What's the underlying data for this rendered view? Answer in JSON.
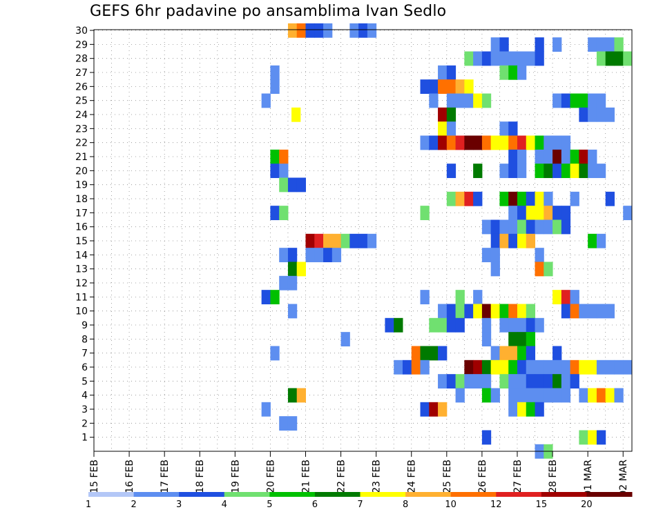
{
  "chart_data": {
    "type": "heatmap",
    "title": "GEFS 6hr padavine po ansamblima Ivan Sedlo",
    "xlabel": "",
    "ylabel": "",
    "x_tick_labels": [
      "15 FEB",
      "16 FEB",
      "17 FEB",
      "18 FEB",
      "19 FEB",
      "20 FEB",
      "21 FEB",
      "22 FEB",
      "23 FEB",
      "24 FEB",
      "25 FEB",
      "26 FEB",
      "27 FEB",
      "28 FEB",
      "01 MAR",
      "02 MAR"
    ],
    "y_tick_labels": [
      "1",
      "2",
      "3",
      "4",
      "5",
      "6",
      "7",
      "8",
      "9",
      "10",
      "11",
      "12",
      "13",
      "14",
      "15",
      "16",
      "17",
      "18",
      "19",
      "20",
      "21",
      "22",
      "23",
      "24",
      "25",
      "26",
      "27",
      "28",
      "29",
      "30"
    ],
    "y_range": [
      0,
      30
    ],
    "x_range_days": [
      0,
      15.25
    ],
    "grid": true,
    "legend_placement": "bottom",
    "colorbar": {
      "labels": [
        "1",
        "2",
        "3",
        "4",
        "5",
        "6",
        "7",
        "8",
        "10",
        "12",
        "15",
        "20"
      ],
      "colors": [
        "#b3c7f7",
        "#5d8ef0",
        "#1f4fe0",
        "#70e070",
        "#00c000",
        "#007a00",
        "#ffff00",
        "#ffb030",
        "#ff7000",
        "#e02020",
        "#a00000",
        "#6a0000"
      ]
    },
    "series": [
      {
        "member": 30,
        "x": [
          5.5,
          5.75,
          6.0,
          6.25,
          6.5,
          7.25,
          7.5,
          7.75
        ],
        "v": [
          8,
          10,
          3,
          3,
          2,
          2,
          3,
          2
        ]
      },
      {
        "member": 29,
        "x": [
          11.25,
          11.5,
          12.5,
          13.0,
          14.0,
          14.25,
          14.5,
          14.75
        ],
        "v": [
          2,
          3,
          3,
          2,
          2,
          2,
          2,
          4
        ]
      },
      {
        "member": 28,
        "x": [
          10.5,
          10.75,
          11.0,
          11.25,
          11.5,
          11.75,
          12.0,
          12.25,
          12.5,
          14.25,
          14.5,
          14.75,
          15.0
        ],
        "v": [
          4,
          2,
          3,
          2,
          2,
          2,
          2,
          2,
          3,
          4,
          6,
          6,
          4
        ]
      },
      {
        "member": 27,
        "x": [
          5.0,
          9.75,
          10.0,
          11.5,
          11.75,
          12.0
        ],
        "v": [
          2,
          2,
          3,
          4,
          5,
          2
        ]
      },
      {
        "member": 26,
        "x": [
          5.0,
          9.25,
          9.5,
          9.75,
          10.0,
          10.25,
          10.5
        ],
        "v": [
          2,
          3,
          3,
          10,
          10,
          8,
          7
        ]
      },
      {
        "member": 25,
        "x": [
          4.75,
          9.5,
          10.0,
          10.25,
          10.5,
          10.75,
          11.0,
          13.0,
          13.25,
          13.5,
          13.75,
          14.0,
          14.25
        ],
        "v": [
          2,
          2,
          2,
          2,
          2,
          7,
          4,
          2,
          3,
          5,
          5,
          2,
          2
        ]
      },
      {
        "member": 24,
        "x": [
          5.6,
          9.75,
          10.0,
          13.75,
          14.0,
          14.25,
          14.5
        ],
        "v": [
          7,
          15,
          6,
          3,
          2,
          2,
          2
        ]
      },
      {
        "member": 23,
        "x": [
          9.75,
          10.0,
          11.5,
          11.75
        ],
        "v": [
          7,
          2,
          2,
          3
        ]
      },
      {
        "member": 22,
        "x": [
          9.25,
          9.5,
          9.75,
          10.0,
          10.25,
          10.5,
          10.75,
          11.0,
          11.25,
          11.5,
          11.75,
          12.0,
          12.25,
          12.5,
          12.75,
          13.0,
          13.25
        ],
        "v": [
          2,
          3,
          15,
          10,
          12,
          20,
          20,
          10,
          7,
          7,
          10,
          12,
          7,
          5,
          2,
          2,
          2
        ]
      },
      {
        "member": 21,
        "x": [
          5.0,
          5.25,
          11.75,
          12.0,
          12.5,
          12.75,
          13.0,
          13.25,
          13.5,
          13.75,
          14.0
        ],
        "v": [
          5,
          10,
          3,
          2,
          2,
          2,
          20,
          2,
          5,
          15,
          2
        ]
      },
      {
        "member": 20,
        "x": [
          5.0,
          5.25,
          10.0,
          10.75,
          11.5,
          11.75,
          12.0,
          12.5,
          12.75,
          13.0,
          13.25,
          13.5,
          13.75,
          14.0,
          14.25
        ],
        "v": [
          3,
          2,
          3,
          6,
          2,
          3,
          2,
          5,
          6,
          3,
          5,
          7,
          6,
          2,
          2
        ]
      },
      {
        "member": 19,
        "x": [
          5.25,
          5.5,
          5.75
        ],
        "v": [
          4,
          3,
          3
        ]
      },
      {
        "member": 18,
        "x": [
          10.0,
          10.25,
          10.5,
          10.75,
          11.5,
          11.75,
          12.0,
          12.25,
          12.5,
          12.75,
          13.5,
          14.5
        ],
        "v": [
          4,
          8,
          12,
          3,
          5,
          20,
          5,
          3,
          7,
          2,
          2,
          3
        ]
      },
      {
        "member": 17,
        "x": [
          5.0,
          5.25,
          9.25,
          11.75,
          12.0,
          12.25,
          12.5,
          12.75,
          13.0,
          13.25,
          15.0
        ],
        "v": [
          3,
          4,
          4,
          2,
          3,
          7,
          7,
          8,
          3,
          3,
          2
        ]
      },
      {
        "member": 16,
        "x": [
          11.0,
          11.25,
          11.5,
          11.75,
          12.0,
          12.25,
          12.5,
          12.75,
          13.0,
          13.25
        ],
        "v": [
          2,
          3,
          2,
          2,
          4,
          3,
          2,
          2,
          4,
          3
        ]
      },
      {
        "member": 15,
        "x": [
          6.0,
          6.25,
          6.5,
          6.75,
          7.0,
          7.25,
          7.5,
          7.75,
          11.25,
          11.5,
          11.75,
          12.0,
          12.25,
          14.0,
          14.25
        ],
        "v": [
          15,
          12,
          8,
          8,
          4,
          3,
          3,
          2,
          3,
          8,
          3,
          7,
          8,
          5,
          2
        ]
      },
      {
        "member": 14,
        "x": [
          5.25,
          5.5,
          6.0,
          6.25,
          6.5,
          6.75,
          11.0,
          11.25,
          12.5
        ],
        "v": [
          2,
          3,
          2,
          2,
          3,
          2,
          2,
          2,
          2
        ]
      },
      {
        "member": 13,
        "x": [
          5.5,
          5.75,
          11.25,
          12.5,
          12.75
        ],
        "v": [
          6,
          7,
          2,
          10,
          4
        ]
      },
      {
        "member": 12,
        "x": [
          5.25,
          5.5
        ],
        "v": [
          2,
          2
        ]
      },
      {
        "member": 11,
        "x": [
          4.75,
          5.0,
          9.25,
          10.25,
          10.75,
          13.0,
          13.25,
          13.5
        ],
        "v": [
          3,
          5,
          2,
          4,
          2,
          7,
          12,
          2
        ]
      },
      {
        "member": 10,
        "x": [
          5.5,
          9.75,
          10.0,
          10.25,
          10.5,
          10.75,
          11.0,
          11.25,
          11.5,
          11.75,
          12.0,
          12.25,
          13.25,
          13.5,
          13.75,
          14.0,
          14.25,
          14.5
        ],
        "v": [
          2,
          2,
          3,
          4,
          3,
          7,
          20,
          7,
          5,
          10,
          7,
          4,
          3,
          10,
          2,
          2,
          2,
          2
        ]
      },
      {
        "member": 9,
        "x": [
          8.25,
          8.5,
          9.5,
          9.75,
          10.0,
          10.25,
          11.0,
          11.5,
          11.75,
          12.0,
          12.25,
          12.5
        ],
        "v": [
          3,
          6,
          4,
          4,
          3,
          3,
          2,
          2,
          2,
          2,
          3,
          2
        ]
      },
      {
        "member": 8,
        "x": [
          7.0,
          11.0,
          11.75,
          12.0,
          12.25
        ],
        "v": [
          2,
          2,
          6,
          6,
          5
        ]
      },
      {
        "member": 7,
        "x": [
          5.0,
          9.0,
          9.25,
          9.5,
          9.75,
          11.25,
          11.5,
          11.75,
          12.0,
          12.25,
          13.0
        ],
        "v": [
          2,
          10,
          6,
          6,
          3,
          2,
          8,
          8,
          5,
          3,
          3
        ]
      },
      {
        "member": 6,
        "x": [
          8.5,
          8.75,
          9.0,
          9.25,
          10.5,
          10.75,
          11.0,
          11.25,
          11.5,
          11.75,
          12.0,
          12.25,
          12.5,
          12.75,
          13.0,
          13.25,
          13.5,
          13.75,
          14.0,
          14.25,
          14.5,
          14.75,
          15.0
        ],
        "v": [
          2,
          3,
          10,
          2,
          20,
          15,
          6,
          7,
          7,
          5,
          3,
          2,
          2,
          2,
          2,
          2,
          10,
          7,
          7,
          2,
          2,
          2,
          2
        ]
      },
      {
        "member": 5,
        "x": [
          9.75,
          10.0,
          10.25,
          10.5,
          10.75,
          11.0,
          11.5,
          11.75,
          12.0,
          12.25,
          12.5,
          12.75,
          13.0,
          13.25,
          13.5
        ],
        "v": [
          2,
          3,
          4,
          2,
          2,
          2,
          4,
          2,
          2,
          3,
          3,
          3,
          6,
          2,
          3
        ]
      },
      {
        "member": 4,
        "x": [
          5.5,
          5.75,
          10.25,
          11.0,
          11.25,
          11.75,
          12.0,
          12.25,
          12.5,
          12.75,
          13.0,
          13.25,
          13.75,
          14.0,
          14.25,
          14.5,
          14.75
        ],
        "v": [
          6,
          8,
          2,
          5,
          2,
          2,
          2,
          2,
          2,
          2,
          2,
          2,
          2,
          7,
          10,
          7,
          2
        ]
      },
      {
        "member": 3,
        "x": [
          4.75,
          9.25,
          9.5,
          9.75,
          11.75,
          12.0,
          12.25,
          12.5
        ],
        "v": [
          2,
          3,
          15,
          8,
          2,
          7,
          5,
          3
        ]
      },
      {
        "member": 2,
        "x": [
          5.25,
          5.5
        ],
        "v": [
          2,
          2
        ]
      },
      {
        "member": 1,
        "x": [
          11.0,
          13.75,
          14.0,
          14.25
        ],
        "v": [
          3,
          4,
          7,
          3
        ]
      },
      {
        "member": 0,
        "x": [
          12.5,
          12.75
        ],
        "v": [
          2,
          4
        ]
      }
    ]
  }
}
